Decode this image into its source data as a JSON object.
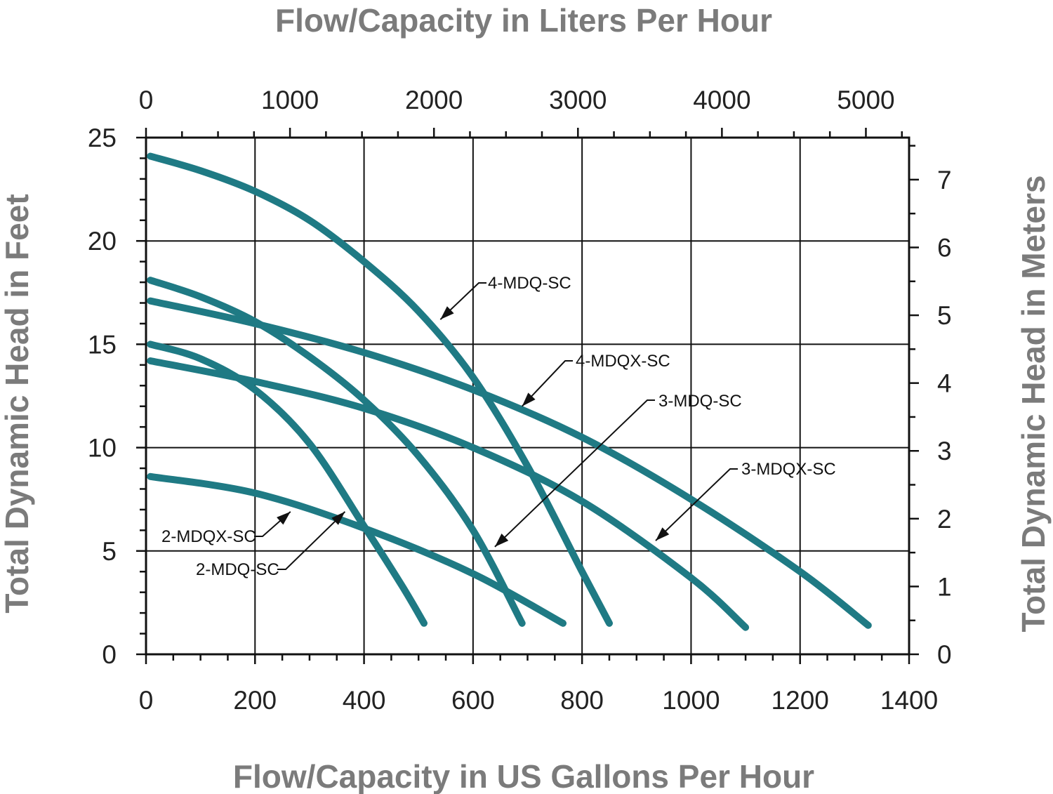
{
  "chart_data": {
    "type": "line",
    "xlabel": "Flow/Capacity in US Gallons Per Hour",
    "x2label": "Flow/Capacity in Liters Per Hour",
    "ylabel": "Total Dynamic Head in Feet",
    "y2label": "Total Dynamic Head in Meters",
    "xlim": [
      0,
      1400
    ],
    "ylim": [
      0,
      25
    ],
    "x2lim_liters": [
      0,
      5300
    ],
    "y2lim_meters": [
      0,
      7.62
    ],
    "grid": true,
    "x_ticks": [
      0,
      200,
      400,
      600,
      800,
      1000,
      1200,
      1400
    ],
    "y_ticks": [
      0,
      5,
      10,
      15,
      20,
      25
    ],
    "x2_ticks": [
      0,
      1000,
      2000,
      3000,
      4000,
      5000
    ],
    "y2_ticks": [
      0,
      1,
      2,
      3,
      4,
      5,
      6,
      7
    ],
    "line_color": "#1f7a84",
    "series": [
      {
        "name": "4-MDQ-SC",
        "x": [
          8,
          100,
          200,
          300,
          400,
          500,
          600,
          700,
          800,
          850
        ],
        "y": [
          24.1,
          23.4,
          22.4,
          21.0,
          19.0,
          16.6,
          13.4,
          9.1,
          4.0,
          1.5
        ]
      },
      {
        "name": "4-MDQX-SC",
        "x": [
          8,
          200,
          400,
          600,
          800,
          1000,
          1200,
          1325
        ],
        "y": [
          17.1,
          16.0,
          14.6,
          12.8,
          10.5,
          7.5,
          4.0,
          1.4
        ]
      },
      {
        "name": "3-MDQ-SC",
        "x": [
          8,
          100,
          200,
          300,
          400,
          500,
          600,
          690
        ],
        "y": [
          18.1,
          17.3,
          16.1,
          14.4,
          12.3,
          9.6,
          6.0,
          1.5
        ]
      },
      {
        "name": "3-MDQX-SC",
        "x": [
          8,
          200,
          400,
          600,
          800,
          1000,
          1100
        ],
        "y": [
          14.2,
          13.2,
          11.9,
          10.0,
          7.4,
          3.7,
          1.3
        ]
      },
      {
        "name": "2-MDQ-SC",
        "x": [
          8,
          100,
          200,
          300,
          400,
          470,
          510
        ],
        "y": [
          15.0,
          14.3,
          12.8,
          10.2,
          6.2,
          3.3,
          1.5
        ]
      },
      {
        "name": "2-MDQX-SC",
        "x": [
          8,
          200,
          400,
          600,
          765
        ],
        "y": [
          8.6,
          7.8,
          6.1,
          3.9,
          1.5
        ]
      }
    ],
    "annotations": [
      {
        "text": "4-MDQ-SC",
        "arrow_to": [
          540,
          16.2
        ]
      },
      {
        "text": "4-MDQX-SC",
        "arrow_to": [
          690,
          12.0
        ]
      },
      {
        "text": "3-MDQ-SC",
        "arrow_to": [
          640,
          5.2
        ]
      },
      {
        "text": "3-MDQX-SC",
        "arrow_to": [
          935,
          5.5
        ]
      },
      {
        "text": "2-MDQX-SC",
        "arrow_to": [
          265,
          6.9
        ]
      },
      {
        "text": "2-MDQ-SC",
        "arrow_to": [
          365,
          6.9
        ]
      }
    ]
  }
}
